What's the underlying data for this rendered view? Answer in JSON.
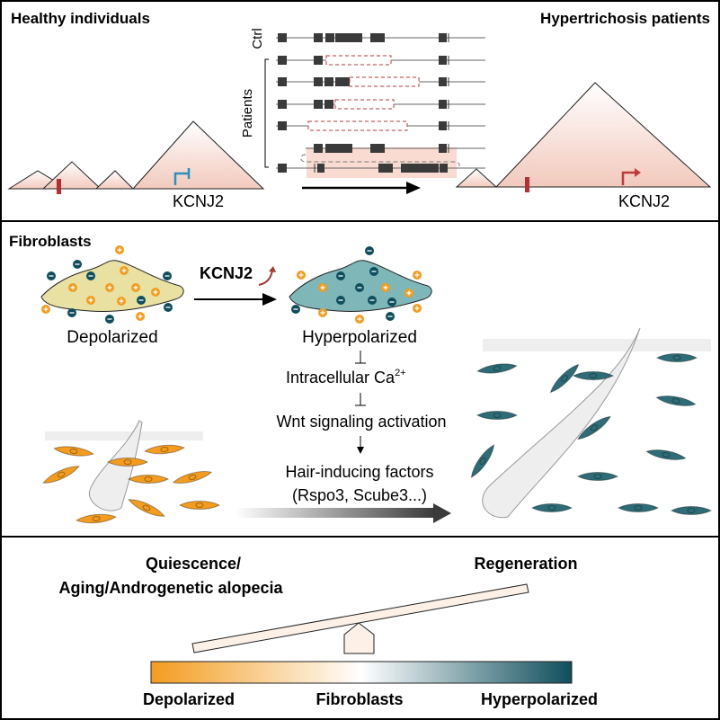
{
  "top": {
    "healthy_title": "Healthy individuals",
    "patients_title": "Hypertrichosis patients",
    "gene_left": "KCNJ2",
    "gene_right": "KCNJ2",
    "ctrl_label": "Ctrl",
    "patients_label": "Patients"
  },
  "middle": {
    "title": "Fibroblasts",
    "kcnj2": "KCNJ2",
    "depolarized": "Depolarized",
    "hyperpolarized": "Hyperpolarized",
    "calcium": "Intracellular Ca",
    "calcium_sup": "2+",
    "wnt": "Wnt signaling activation",
    "factors_line1": "Hair-inducing factors",
    "factors_line2": "(Rspo3, Scube3...)"
  },
  "bottom": {
    "left_line1": "Quiescence/",
    "left_line2": "Aging/Androgenetic alopecia",
    "right": "Regeneration",
    "scale_left": "Depolarized",
    "scale_center": "Fibroblasts",
    "scale_right": "Hyperpolarized"
  },
  "colors": {
    "depolarized": "#f39c1f",
    "hyperpolarized": "#0f4e5c",
    "cell_depolarized": "#e9e1a2",
    "cell_hyperpolarized": "#7fb7b9",
    "deletion": "#c0393b",
    "enhancer_box": "#fadbd2"
  }
}
